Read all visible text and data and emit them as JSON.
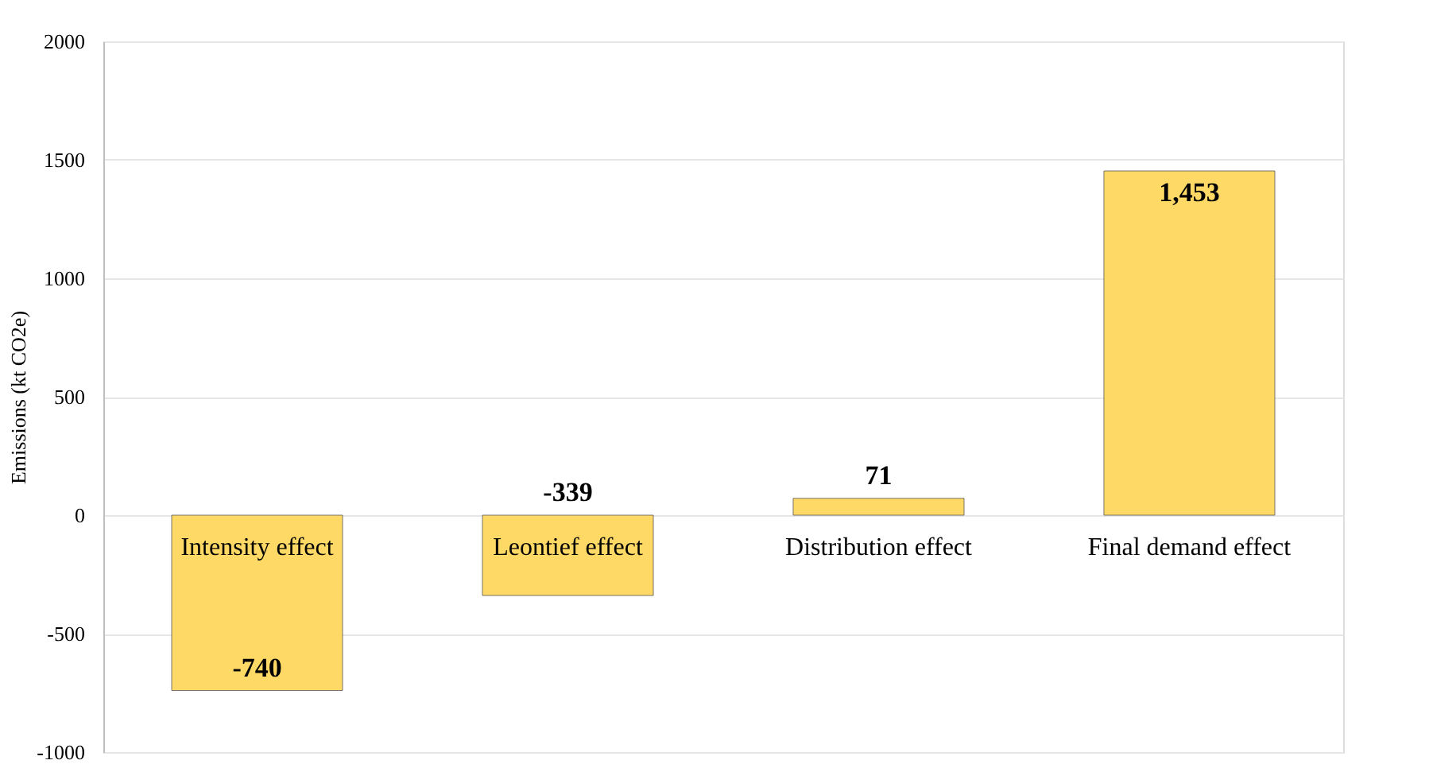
{
  "chart_data": {
    "type": "bar",
    "ylabel": "Emissions (kt CO2e)",
    "categories": [
      "Intensity effect",
      "Leontief effect",
      "Distribution effect",
      "Final demand effect"
    ],
    "values": [
      -740,
      -339,
      71,
      1453
    ],
    "value_labels": [
      "-740",
      "-339",
      "71",
      "1,453"
    ],
    "color": "#ffd966",
    "ylim": [
      -1000,
      2000
    ],
    "yticks": [
      -1000,
      -500,
      0,
      500,
      1000,
      1500,
      2000
    ],
    "grid": "y"
  }
}
